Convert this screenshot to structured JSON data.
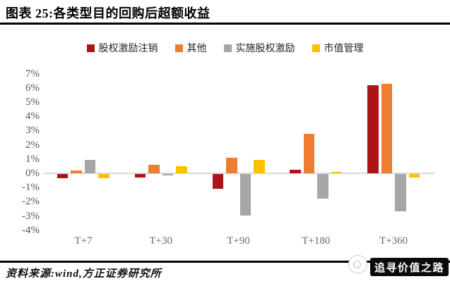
{
  "header": {
    "title": "图表 25:各类型目的回购后超额收益"
  },
  "chart_data": {
    "type": "bar",
    "title": "各类型目的回购后超额收益",
    "categories": [
      "T+7",
      "T+30",
      "T+90",
      "T+180",
      "T+360"
    ],
    "series": [
      {
        "name": "股权激励注销",
        "color": "#AC1418",
        "values": [
          -0.3,
          -0.25,
          -1.05,
          0.25,
          6.2
        ]
      },
      {
        "name": "其他",
        "color": "#ED7D31",
        "values": [
          0.2,
          0.6,
          1.1,
          2.75,
          6.3
        ]
      },
      {
        "name": "实施股权激励",
        "color": "#A6A6A6",
        "values": [
          0.95,
          -0.1,
          -2.9,
          -1.75,
          -2.6
        ]
      },
      {
        "name": "市值管理",
        "color": "#FFC000",
        "values": [
          -0.3,
          0.5,
          0.95,
          0.1,
          -0.25
        ]
      }
    ],
    "yticks": [
      "7%",
      "6%",
      "5%",
      "4%",
      "3%",
      "2%",
      "1%",
      "0%",
      "-1%",
      "-2%",
      "-3%",
      "-4%"
    ],
    "ylim": [
      -4,
      7
    ],
    "unit": "percent",
    "grid": false,
    "legend_position": "top",
    "colors": {
      "zero_line": "#d9d9d9",
      "ytick_label": "#4d5668",
      "xtick_label": "#5a6a7d"
    }
  },
  "footer": {
    "source_note": "资料来源:wind,方正证券研究所",
    "watermark_text": "追寻价值之路"
  }
}
